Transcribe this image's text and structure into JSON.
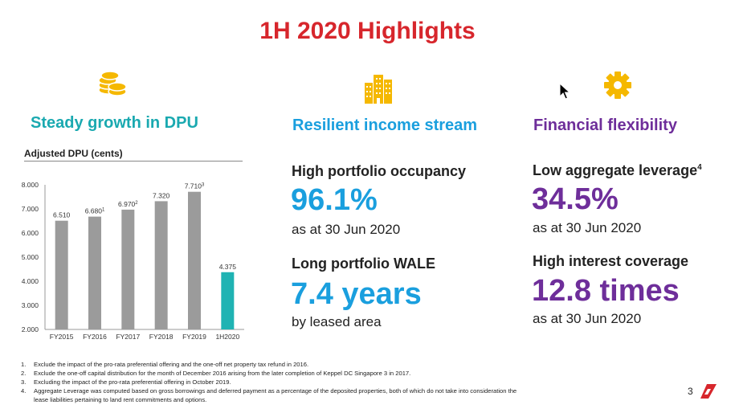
{
  "slide": {
    "title": "1H 2020 Highlights",
    "page_number": "3"
  },
  "columns": {
    "dpu": {
      "icon": "coins-icon",
      "title": "Steady growth in DPU"
    },
    "income": {
      "icon": "buildings-icon",
      "title": "Resilient income stream",
      "occupancy_label": "High portfolio occupancy",
      "occupancy_value": "96.1%",
      "occupancy_sub": "as at 30 Jun 2020",
      "wale_label": "Long portfolio WALE",
      "wale_value": "7.4 years",
      "wale_sub": "by leased area"
    },
    "financial": {
      "icon": "gear-icon",
      "title": "Financial flexibility",
      "leverage_label": "Low aggregate leverage",
      "leverage_note": "4",
      "leverage_value": "34.5%",
      "leverage_sub": "as at 30 Jun 2020",
      "coverage_label": "High interest coverage",
      "coverage_value": "12.8 times",
      "coverage_sub": "as at 30 Jun 2020"
    }
  },
  "chart_data": {
    "type": "bar",
    "title": "Adjusted DPU (cents)",
    "categories": [
      "FY2015",
      "FY2016",
      "FY2017",
      "FY2018",
      "FY2019",
      "1H2020"
    ],
    "values": [
      6.51,
      6.68,
      6.97,
      7.32,
      7.71,
      4.375
    ],
    "value_labels": [
      "6.510",
      "6.680",
      "6.970",
      "7.320",
      "7.710",
      "4.375"
    ],
    "label_notes": [
      "",
      "1",
      "2",
      "",
      "3",
      ""
    ],
    "yticks": [
      "8.000",
      "7.000",
      "6.000",
      "5.000",
      "4.000",
      "3.000",
      "2.000"
    ],
    "ylim": [
      2,
      8
    ],
    "colors": [
      "#9b9b9b",
      "#9b9b9b",
      "#9b9b9b",
      "#9b9b9b",
      "#9b9b9b",
      "#1fb3b3"
    ],
    "grid": false,
    "legend": "none"
  },
  "footnotes": [
    {
      "num": "1.",
      "text": "Exclude the impact of the pro-rata preferential offering and the one-off net property tax refund in 2016."
    },
    {
      "num": "2.",
      "text": "Exclude the one-off capital distribution for the month of December 2016 arising from the later completion of Keppel DC Singapore 3 in 2017."
    },
    {
      "num": "3.",
      "text": "Excluding the impact of the pro-rata preferential offering in October 2019."
    },
    {
      "num": "4.",
      "text": "Aggregate Leverage was computed based on gross borrowings and deferred payment as a percentage of the deposited properties, both of which do not take into consideration the"
    },
    {
      "num": "",
      "text": "lease liabilities pertaining to land rent commitments and options."
    }
  ],
  "colors": {
    "title_red": "#d7262c",
    "teal": "#1aa9b0",
    "blue": "#1a9fde",
    "purple": "#6e2e9a",
    "icon_gold": "#f5b800"
  }
}
